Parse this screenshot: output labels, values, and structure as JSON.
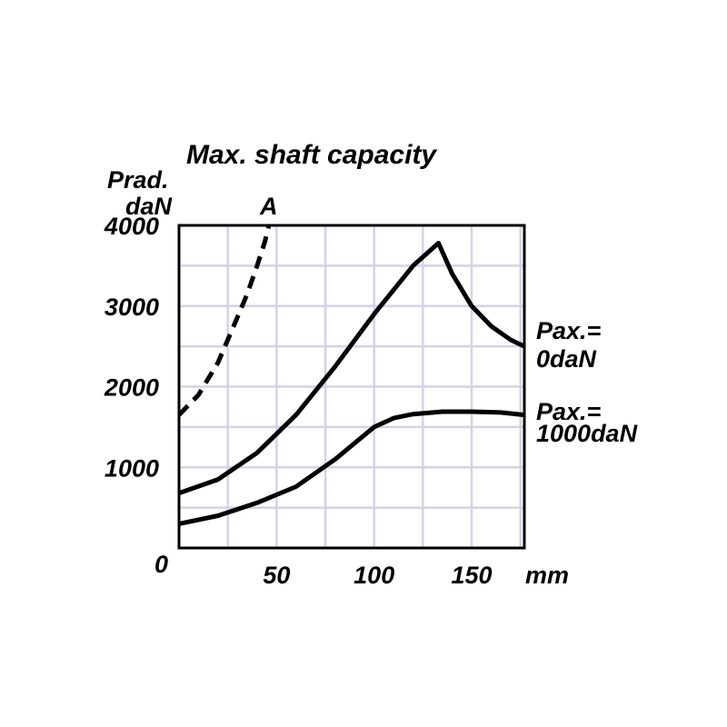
{
  "chart_data": {
    "type": "line",
    "title": "Max. shaft capacity",
    "ylabel_line1": "Prad.",
    "ylabel_line2": "daN",
    "xlabel": "mm",
    "origin_label": "0",
    "xlim": [
      0,
      177
    ],
    "ylim": [
      0,
      4000
    ],
    "x_ticks": [
      50,
      100,
      150
    ],
    "x_tick_labels": [
      "50",
      "100",
      "150"
    ],
    "y_ticks": [
      1000,
      2000,
      3000,
      4000
    ],
    "y_tick_labels": [
      "1000",
      "2000",
      "3000",
      "4000"
    ],
    "grid": true,
    "colors": {
      "line": "#000000",
      "grid": "#d4d2e6"
    },
    "series": [
      {
        "name": "A",
        "style": "dashed",
        "x": [
          0,
          10,
          20,
          28,
          35,
          40,
          44,
          46
        ],
        "y": [
          1650,
          1900,
          2300,
          2750,
          3150,
          3500,
          3800,
          4000
        ]
      },
      {
        "name_line1": "Pax.=",
        "name_line2": "0daN",
        "style": "solid",
        "x": [
          0,
          20,
          40,
          60,
          80,
          100,
          120,
          133,
          140,
          150,
          160,
          170,
          177
        ],
        "y": [
          680,
          850,
          1180,
          1650,
          2250,
          2900,
          3500,
          3780,
          3400,
          3000,
          2750,
          2580,
          2500
        ]
      },
      {
        "name_line1": "Pax.=",
        "name_line2": "1000daN",
        "style": "solid",
        "x": [
          0,
          20,
          40,
          60,
          80,
          100,
          110,
          120,
          135,
          150,
          165,
          177
        ],
        "y": [
          300,
          400,
          560,
          760,
          1100,
          1500,
          1610,
          1660,
          1690,
          1690,
          1680,
          1650
        ]
      }
    ]
  }
}
